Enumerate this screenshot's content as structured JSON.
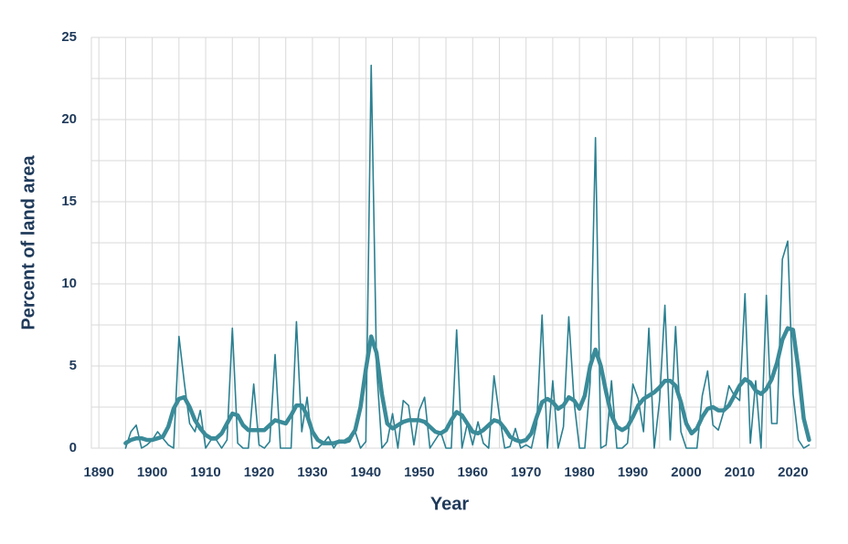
{
  "chart_data": {
    "type": "line",
    "x_label": "Year",
    "y_label": "Percent of land area",
    "x": [
      1895,
      1896,
      1897,
      1898,
      1899,
      1900,
      1901,
      1902,
      1903,
      1904,
      1905,
      1906,
      1907,
      1908,
      1909,
      1910,
      1911,
      1912,
      1913,
      1914,
      1915,
      1916,
      1917,
      1918,
      1919,
      1920,
      1921,
      1922,
      1923,
      1924,
      1925,
      1926,
      1927,
      1928,
      1929,
      1930,
      1931,
      1932,
      1933,
      1934,
      1935,
      1936,
      1937,
      1938,
      1939,
      1940,
      1941,
      1942,
      1943,
      1944,
      1945,
      1946,
      1947,
      1948,
      1949,
      1950,
      1951,
      1952,
      1953,
      1954,
      1955,
      1956,
      1957,
      1958,
      1959,
      1960,
      1961,
      1962,
      1963,
      1964,
      1965,
      1966,
      1967,
      1968,
      1969,
      1970,
      1971,
      1972,
      1973,
      1974,
      1975,
      1976,
      1977,
      1978,
      1979,
      1980,
      1981,
      1982,
      1983,
      1984,
      1985,
      1986,
      1987,
      1988,
      1989,
      1990,
      1991,
      1992,
      1993,
      1994,
      1995,
      1996,
      1997,
      1998,
      1999,
      2000,
      2001,
      2002,
      2003,
      2004,
      2005,
      2006,
      2007,
      2008,
      2009,
      2010,
      2011,
      2012,
      2013,
      2014,
      2015,
      2016,
      2017,
      2018,
      2019,
      2020,
      2021,
      2022,
      2023
    ],
    "series": [
      {
        "color": "#2b8091",
        "width": 1.6,
        "values": [
          0,
          1,
          1.4,
          0,
          0.2,
          0.5,
          1,
          0.6,
          0.2,
          0,
          6.8,
          4,
          1.5,
          1,
          2.3,
          0,
          0.5,
          0.5,
          0,
          0.5,
          7.3,
          0.3,
          0,
          0,
          3.9,
          0.2,
          0,
          0.4,
          5.7,
          0,
          0,
          0,
          7.7,
          1,
          3.1,
          0,
          0,
          0.3,
          0.7,
          0,
          0.5,
          0.3,
          0.4,
          1,
          0,
          0.4,
          23.3,
          5,
          0,
          0.4,
          2.1,
          0,
          2.9,
          2.6,
          0.2,
          2.3,
          3.1,
          0,
          0.5,
          1,
          0,
          0,
          7.2,
          0,
          1.5,
          0.2,
          1.6,
          0.3,
          0,
          4.4,
          2,
          0,
          0.1,
          1.2,
          0,
          0.2,
          0,
          1.5,
          8.1,
          0,
          4.1,
          0,
          1.3,
          8,
          2.8,
          0,
          0,
          4,
          18.9,
          0,
          0.2,
          4.1,
          0,
          0,
          0.3,
          3.9,
          3,
          1,
          7.3,
          0,
          2.9,
          8.7,
          0.5,
          7.4,
          1,
          0,
          0,
          0,
          3.2,
          4.7,
          1.4,
          1.1,
          2.2,
          3.8,
          3.2,
          2.9,
          9.4,
          0.3,
          4.1,
          0,
          9.3,
          1.5,
          1.5,
          11.5,
          12.6,
          3.3,
          0.5,
          0,
          0.2
        ]
      },
      {
        "color": "#3a8b99",
        "width": 4.5,
        "values": [
          0.3,
          0.5,
          0.6,
          0.6,
          0.5,
          0.5,
          0.6,
          0.7,
          1.3,
          2.4,
          3.0,
          3.1,
          2.5,
          1.7,
          1.2,
          0.8,
          0.6,
          0.6,
          0.9,
          1.5,
          2.1,
          2.0,
          1.4,
          1.1,
          1.1,
          1.1,
          1.1,
          1.4,
          1.7,
          1.6,
          1.5,
          2.0,
          2.6,
          2.6,
          2.0,
          1.0,
          0.5,
          0.3,
          0.3,
          0.3,
          0.4,
          0.4,
          0.6,
          1.1,
          2.5,
          4.8,
          6.8,
          5.8,
          3.3,
          1.5,
          1.2,
          1.4,
          1.6,
          1.7,
          1.7,
          1.7,
          1.6,
          1.3,
          1.0,
          0.9,
          1.1,
          1.7,
          2.2,
          2.0,
          1.5,
          1.0,
          0.9,
          1.1,
          1.4,
          1.7,
          1.6,
          1.2,
          0.7,
          0.5,
          0.4,
          0.5,
          0.9,
          1.9,
          2.8,
          3.0,
          2.8,
          2.4,
          2.6,
          3.1,
          2.9,
          2.4,
          3.2,
          5.0,
          6.0,
          5.0,
          3.4,
          2.0,
          1.3,
          1.1,
          1.3,
          1.9,
          2.6,
          3.0,
          3.2,
          3.4,
          3.7,
          4.1,
          4.1,
          3.8,
          2.8,
          1.5,
          0.9,
          1.2,
          1.9,
          2.4,
          2.5,
          2.3,
          2.3,
          2.6,
          3.2,
          3.8,
          4.2,
          4.0,
          3.5,
          3.3,
          3.6,
          4.2,
          5.2,
          6.6,
          7.3,
          7.2,
          4.8,
          1.8,
          0.5
        ]
      }
    ],
    "xlim": [
      1888.6,
      2024.3
    ],
    "ylim": [
      0,
      25
    ],
    "xticks": [
      1890,
      1900,
      1910,
      1920,
      1930,
      1940,
      1950,
      1960,
      1970,
      1980,
      1990,
      2000,
      2010,
      2020
    ],
    "yticks": [
      0,
      5,
      10,
      15,
      20,
      25
    ],
    "minor_xticks": [
      1895,
      1905,
      1915,
      1925,
      1935,
      1945,
      1955,
      1965,
      1975,
      1985,
      1995,
      2005,
      2015
    ],
    "minor_yticks": [
      2.5,
      7.5,
      12.5,
      17.5,
      22.5
    ],
    "grid": true
  }
}
